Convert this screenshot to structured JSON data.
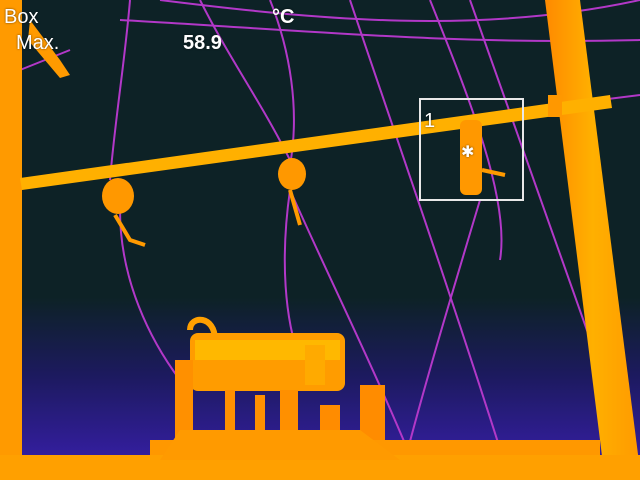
{
  "measurement": {
    "mode_label": "Box",
    "stat_label": "Max.",
    "unit": "°C",
    "value": "58.9"
  },
  "roi": {
    "id": "1"
  },
  "icons": {
    "hotspot": "star-marker-icon"
  },
  "colors": {
    "background": "#0d2226",
    "horizon_glow": "#3a1fb0",
    "hot": "#ffb300",
    "warm": "#ff7a00",
    "wire": "#c040c8"
  }
}
